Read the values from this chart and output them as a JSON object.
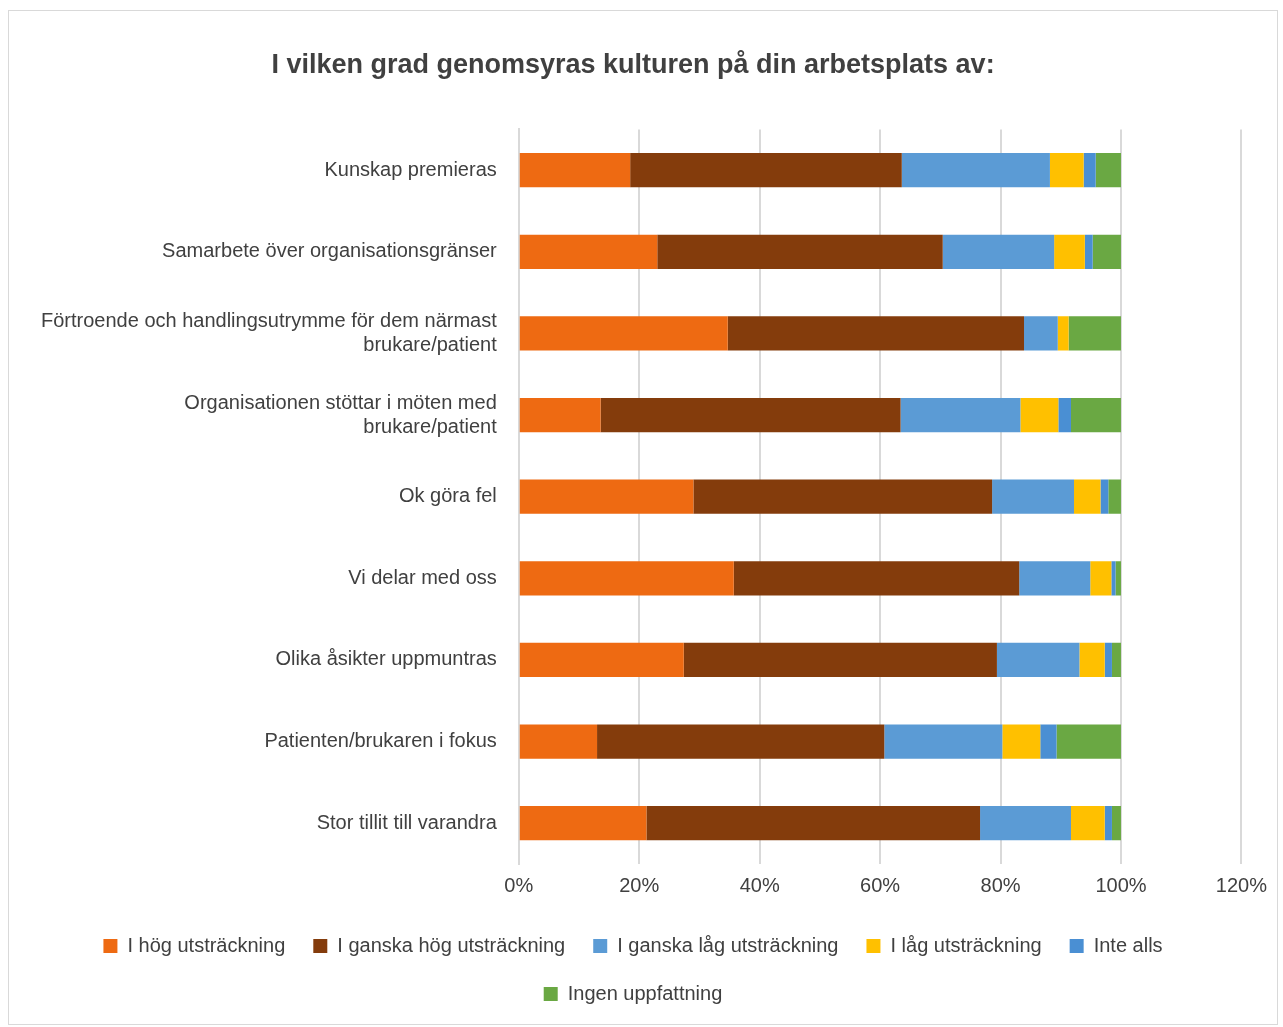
{
  "chart_data": {
    "type": "bar",
    "orientation": "horizontal",
    "stacked": true,
    "title": "I vilken grad genomsyras kulturen på din arbetsplats av:",
    "categories": [
      "Kunskap premieras",
      "Samarbete över organisationsgränser",
      "Förtroende och handlingsutrymme för dem närmast brukare/patient",
      "Organisationen stöttar i möten med brukare/patient",
      "Ok göra fel",
      "Vi delar med oss",
      "Olika åsikter uppmuntras",
      "Patienten/brukaren i fokus",
      "Stor tillit till varandra"
    ],
    "series": [
      {
        "name": "I hög utsträckning",
        "color": "#ee6a12",
        "values": [
          18.5,
          23.0,
          34.7,
          13.6,
          29.0,
          35.7,
          27.4,
          13.0,
          21.2
        ]
      },
      {
        "name": "I ganska hög utsträckning",
        "color": "#843c0c",
        "values": [
          45.1,
          47.4,
          49.2,
          49.8,
          49.6,
          47.4,
          52.0,
          47.7,
          55.4
        ]
      },
      {
        "name": "I ganska låg utsträckning",
        "color": "#5b9bd5",
        "values": [
          24.6,
          18.5,
          5.6,
          19.9,
          13.6,
          11.8,
          13.7,
          19.6,
          15.1
        ]
      },
      {
        "name": "I låg utsträckning",
        "color": "#ffc000",
        "values": [
          5.6,
          5.1,
          1.8,
          6.3,
          4.4,
          3.5,
          4.2,
          6.3,
          5.6
        ]
      },
      {
        "name": "Inte alls",
        "color": "#4a8fd3",
        "values": [
          2.0,
          1.3,
          0,
          2.1,
          1.3,
          0.7,
          1.2,
          2.7,
          1.2
        ]
      },
      {
        "name": "Ingen uppfattning",
        "color": "#6aa843",
        "values": [
          4.2,
          4.7,
          8.7,
          8.3,
          2.1,
          0.9,
          1.5,
          10.7,
          1.5
        ]
      }
    ],
    "xlim": [
      0,
      120
    ],
    "xticks": [
      {
        "value": 0,
        "label": "0%"
      },
      {
        "value": 20,
        "label": "20%"
      },
      {
        "value": 40,
        "label": "40%"
      },
      {
        "value": 60,
        "label": "60%"
      },
      {
        "value": 80,
        "label": "80%"
      },
      {
        "value": 100,
        "label": "100%"
      },
      {
        "value": 120,
        "label": "120%"
      }
    ],
    "grid": "x",
    "legend": "bottom"
  }
}
